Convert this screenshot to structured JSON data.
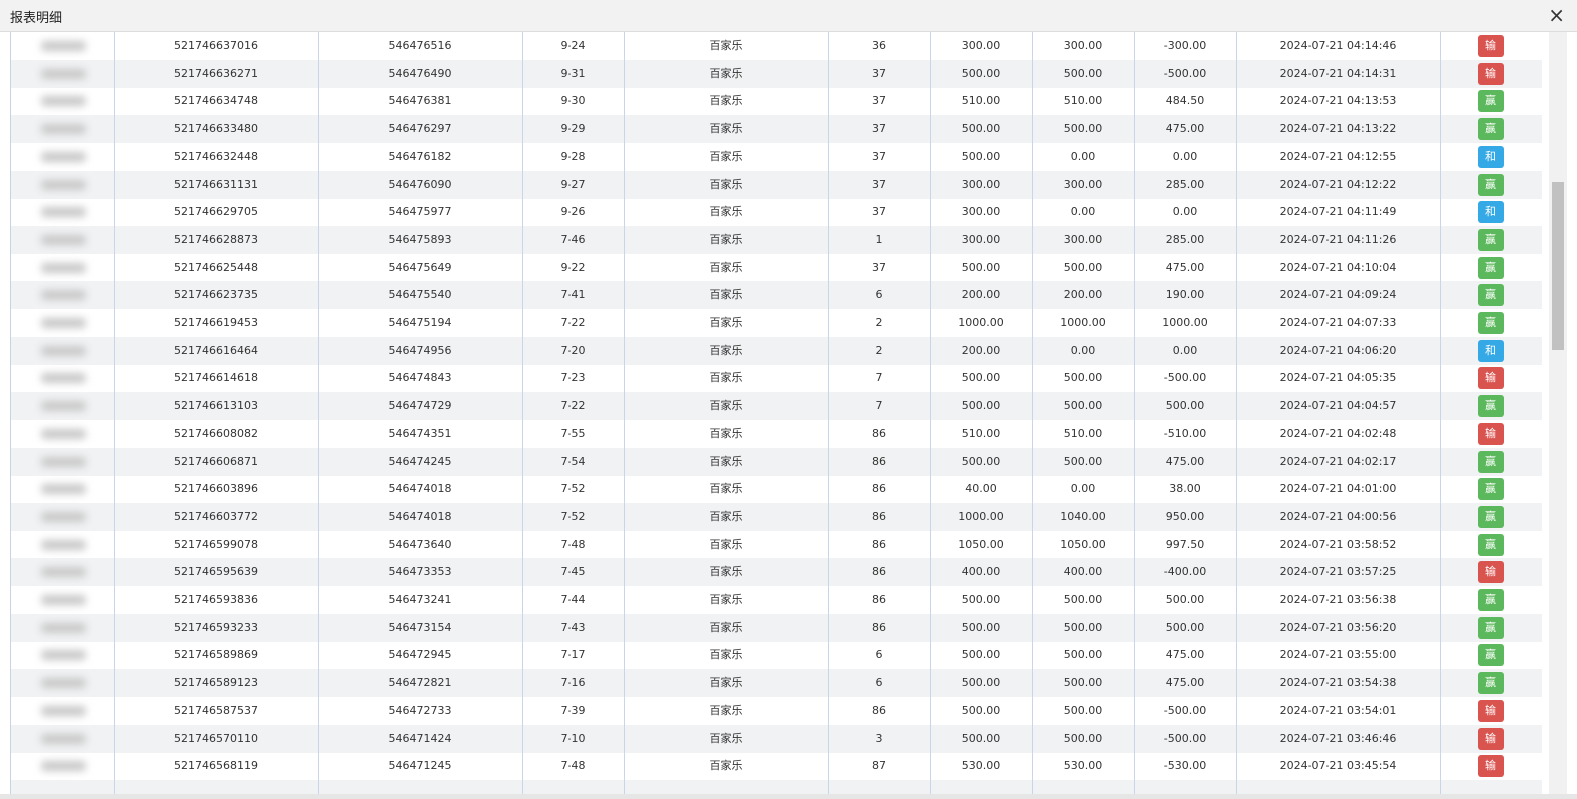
{
  "header": {
    "title": "报表明细",
    "close": "×"
  },
  "table": {
    "rows": [
      {
        "cells": [
          "521746637016",
          "546476516",
          "9-24",
          "百家乐",
          "36",
          "300.00",
          "300.00",
          "-300.00",
          "2024-07-21 04:14:46",
          "输"
        ],
        "result_color": "#d9534f"
      },
      {
        "cells": [
          "521746636271",
          "546476490",
          "9-31",
          "百家乐",
          "37",
          "500.00",
          "500.00",
          "-500.00",
          "2024-07-21 04:14:31",
          "输"
        ],
        "result_color": "#d9534f"
      },
      {
        "cells": [
          "521746634748",
          "546476381",
          "9-30",
          "百家乐",
          "37",
          "510.00",
          "510.00",
          "484.50",
          "2024-07-21 04:13:53",
          "赢"
        ],
        "result_color": "#5cb85c"
      },
      {
        "cells": [
          "521746633480",
          "546476297",
          "9-29",
          "百家乐",
          "37",
          "500.00",
          "500.00",
          "475.00",
          "2024-07-21 04:13:22",
          "赢"
        ],
        "result_color": "#5cb85c"
      },
      {
        "cells": [
          "521746632448",
          "546476182",
          "9-28",
          "百家乐",
          "37",
          "500.00",
          "0.00",
          "0.00",
          "2024-07-21 04:12:55",
          "和"
        ],
        "result_color": "#35a9e6"
      },
      {
        "cells": [
          "521746631131",
          "546476090",
          "9-27",
          "百家乐",
          "37",
          "300.00",
          "300.00",
          "285.00",
          "2024-07-21 04:12:22",
          "赢"
        ],
        "result_color": "#5cb85c"
      },
      {
        "cells": [
          "521746629705",
          "546475977",
          "9-26",
          "百家乐",
          "37",
          "300.00",
          "0.00",
          "0.00",
          "2024-07-21 04:11:49",
          "和"
        ],
        "result_color": "#35a9e6"
      },
      {
        "cells": [
          "521746628873",
          "546475893",
          "7-46",
          "百家乐",
          "1",
          "300.00",
          "300.00",
          "285.00",
          "2024-07-21 04:11:26",
          "赢"
        ],
        "result_color": "#5cb85c"
      },
      {
        "cells": [
          "521746625448",
          "546475649",
          "9-22",
          "百家乐",
          "37",
          "500.00",
          "500.00",
          "475.00",
          "2024-07-21 04:10:04",
          "赢"
        ],
        "result_color": "#5cb85c"
      },
      {
        "cells": [
          "521746623735",
          "546475540",
          "7-41",
          "百家乐",
          "6",
          "200.00",
          "200.00",
          "190.00",
          "2024-07-21 04:09:24",
          "赢"
        ],
        "result_color": "#5cb85c"
      },
      {
        "cells": [
          "521746619453",
          "546475194",
          "7-22",
          "百家乐",
          "2",
          "1000.00",
          "1000.00",
          "1000.00",
          "2024-07-21 04:07:33",
          "赢"
        ],
        "result_color": "#5cb85c"
      },
      {
        "cells": [
          "521746616464",
          "546474956",
          "7-20",
          "百家乐",
          "2",
          "200.00",
          "0.00",
          "0.00",
          "2024-07-21 04:06:20",
          "和"
        ],
        "result_color": "#35a9e6"
      },
      {
        "cells": [
          "521746614618",
          "546474843",
          "7-23",
          "百家乐",
          "7",
          "500.00",
          "500.00",
          "-500.00",
          "2024-07-21 04:05:35",
          "输"
        ],
        "result_color": "#d9534f"
      },
      {
        "cells": [
          "521746613103",
          "546474729",
          "7-22",
          "百家乐",
          "7",
          "500.00",
          "500.00",
          "500.00",
          "2024-07-21 04:04:57",
          "赢"
        ],
        "result_color": "#5cb85c"
      },
      {
        "cells": [
          "521746608082",
          "546474351",
          "7-55",
          "百家乐",
          "86",
          "510.00",
          "510.00",
          "-510.00",
          "2024-07-21 04:02:48",
          "输"
        ],
        "result_color": "#d9534f"
      },
      {
        "cells": [
          "521746606871",
          "546474245",
          "7-54",
          "百家乐",
          "86",
          "500.00",
          "500.00",
          "475.00",
          "2024-07-21 04:02:17",
          "赢"
        ],
        "result_color": "#5cb85c"
      },
      {
        "cells": [
          "521746603896",
          "546474018",
          "7-52",
          "百家乐",
          "86",
          "40.00",
          "0.00",
          "38.00",
          "2024-07-21 04:01:00",
          "赢"
        ],
        "result_color": "#5cb85c"
      },
      {
        "cells": [
          "521746603772",
          "546474018",
          "7-52",
          "百家乐",
          "86",
          "1000.00",
          "1040.00",
          "950.00",
          "2024-07-21 04:00:56",
          "赢"
        ],
        "result_color": "#5cb85c"
      },
      {
        "cells": [
          "521746599078",
          "546473640",
          "7-48",
          "百家乐",
          "86",
          "1050.00",
          "1050.00",
          "997.50",
          "2024-07-21 03:58:52",
          "赢"
        ],
        "result_color": "#5cb85c"
      },
      {
        "cells": [
          "521746595639",
          "546473353",
          "7-45",
          "百家乐",
          "86",
          "400.00",
          "400.00",
          "-400.00",
          "2024-07-21 03:57:25",
          "输"
        ],
        "result_color": "#d9534f"
      },
      {
        "cells": [
          "521746593836",
          "546473241",
          "7-44",
          "百家乐",
          "86",
          "500.00",
          "500.00",
          "500.00",
          "2024-07-21 03:56:38",
          "赢"
        ],
        "result_color": "#5cb85c"
      },
      {
        "cells": [
          "521746593233",
          "546473154",
          "7-43",
          "百家乐",
          "86",
          "500.00",
          "500.00",
          "500.00",
          "2024-07-21 03:56:20",
          "赢"
        ],
        "result_color": "#5cb85c"
      },
      {
        "cells": [
          "521746589869",
          "546472945",
          "7-17",
          "百家乐",
          "6",
          "500.00",
          "500.00",
          "475.00",
          "2024-07-21 03:55:00",
          "赢"
        ],
        "result_color": "#5cb85c"
      },
      {
        "cells": [
          "521746589123",
          "546472821",
          "7-16",
          "百家乐",
          "6",
          "500.00",
          "500.00",
          "475.00",
          "2024-07-21 03:54:38",
          "赢"
        ],
        "result_color": "#5cb85c"
      },
      {
        "cells": [
          "521746587537",
          "546472733",
          "7-39",
          "百家乐",
          "86",
          "500.00",
          "500.00",
          "-500.00",
          "2024-07-21 03:54:01",
          "输"
        ],
        "result_color": "#d9534f"
      },
      {
        "cells": [
          "521746570110",
          "546471424",
          "7-10",
          "百家乐",
          "3",
          "500.00",
          "500.00",
          "-500.00",
          "2024-07-21 03:46:46",
          "输"
        ],
        "result_color": "#d9534f"
      },
      {
        "cells": [
          "521746568119",
          "546471245",
          "7-48",
          "百家乐",
          "87",
          "530.00",
          "530.00",
          "-530.00",
          "2024-07-21 03:45:54",
          "输"
        ],
        "result_color": "#d9534f"
      }
    ]
  }
}
